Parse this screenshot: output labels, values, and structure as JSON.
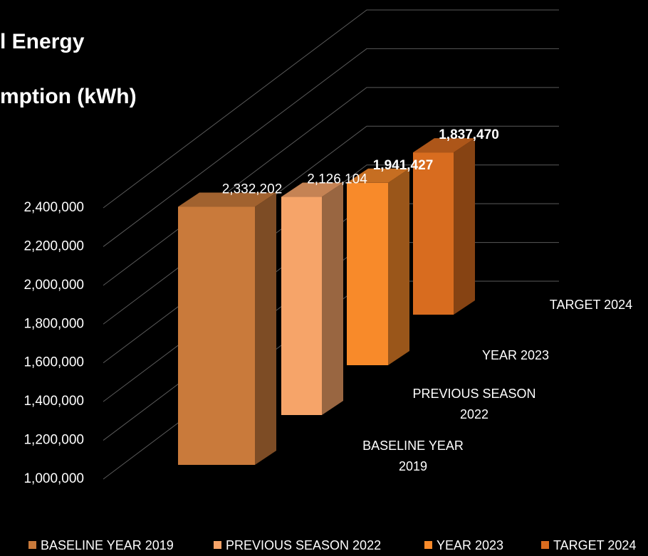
{
  "chart_data": {
    "type": "bar3d",
    "title": [
      "l Energy",
      "mption (kWh)"
    ],
    "categories": [
      "BASELINE YEAR 2019",
      "PREVIOUS SEASON 2022",
      "YEAR 2023",
      "TARGET 2024"
    ],
    "series": [
      {
        "name": "BASELINE YEAR 2019",
        "color": "#c97a3b"
      },
      {
        "name": "PREVIOUS SEASON 2022",
        "color": "#f6a469"
      },
      {
        "name": "YEAR 2023",
        "color": "#f88a2a"
      },
      {
        "name": "TARGET 2024",
        "color": "#d86c1f"
      }
    ],
    "values": [
      2332202,
      2126104,
      1941427,
      1837470
    ],
    "value_labels": [
      "2,332,202",
      "2,126,104",
      "1,941,427",
      "1,837,470"
    ],
    "ylim": [
      1000000,
      2400000
    ],
    "yticks": [
      {
        "value": 1000000,
        "label": "1,000,000"
      },
      {
        "value": 1200000,
        "label": "1,200,000"
      },
      {
        "value": 1400000,
        "label": "1,400,000"
      },
      {
        "value": 1600000,
        "label": "1,600,000"
      },
      {
        "value": 1800000,
        "label": "1,800,000"
      },
      {
        "value": 2000000,
        "label": "2,000,000"
      },
      {
        "value": 2200000,
        "label": "2,200,000"
      },
      {
        "value": 2400000,
        "label": "2,400,000"
      }
    ],
    "grid": true
  }
}
